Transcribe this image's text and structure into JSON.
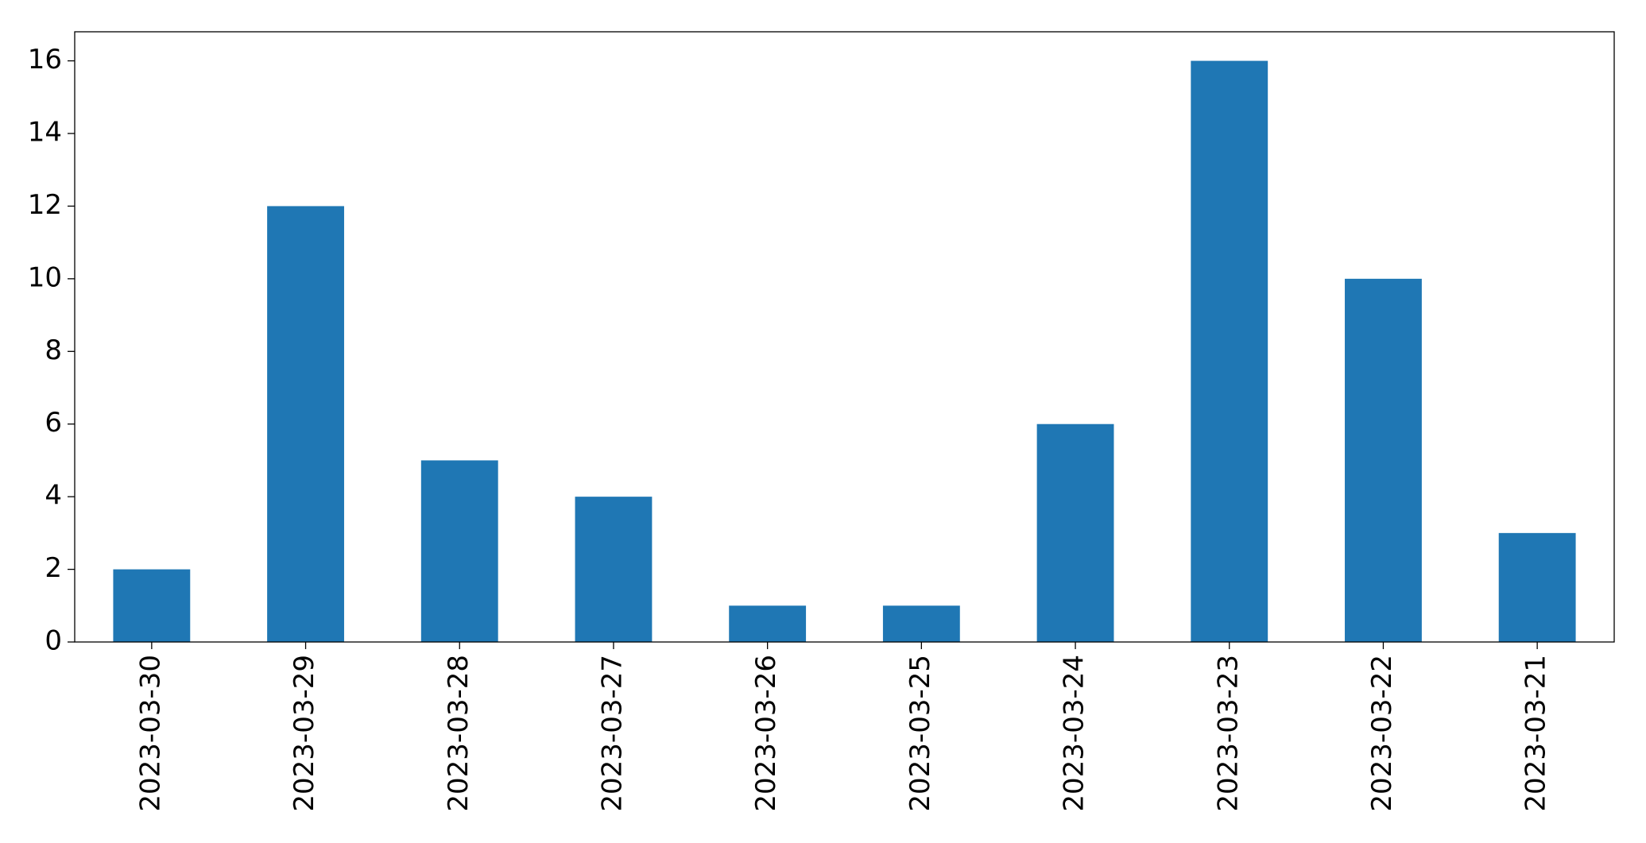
{
  "chart_data": {
    "type": "bar",
    "categories": [
      "2023-03-30",
      "2023-03-29",
      "2023-03-28",
      "2023-03-27",
      "2023-03-26",
      "2023-03-25",
      "2023-03-24",
      "2023-03-23",
      "2023-03-22",
      "2023-03-21"
    ],
    "values": [
      2,
      12,
      5,
      4,
      1,
      1,
      6,
      16,
      10,
      3
    ],
    "color": "#1f77b4",
    "ylim": [
      0,
      16.8
    ],
    "yticks": [
      0,
      2,
      4,
      6,
      8,
      10,
      12,
      14,
      16
    ],
    "grid": false
  }
}
